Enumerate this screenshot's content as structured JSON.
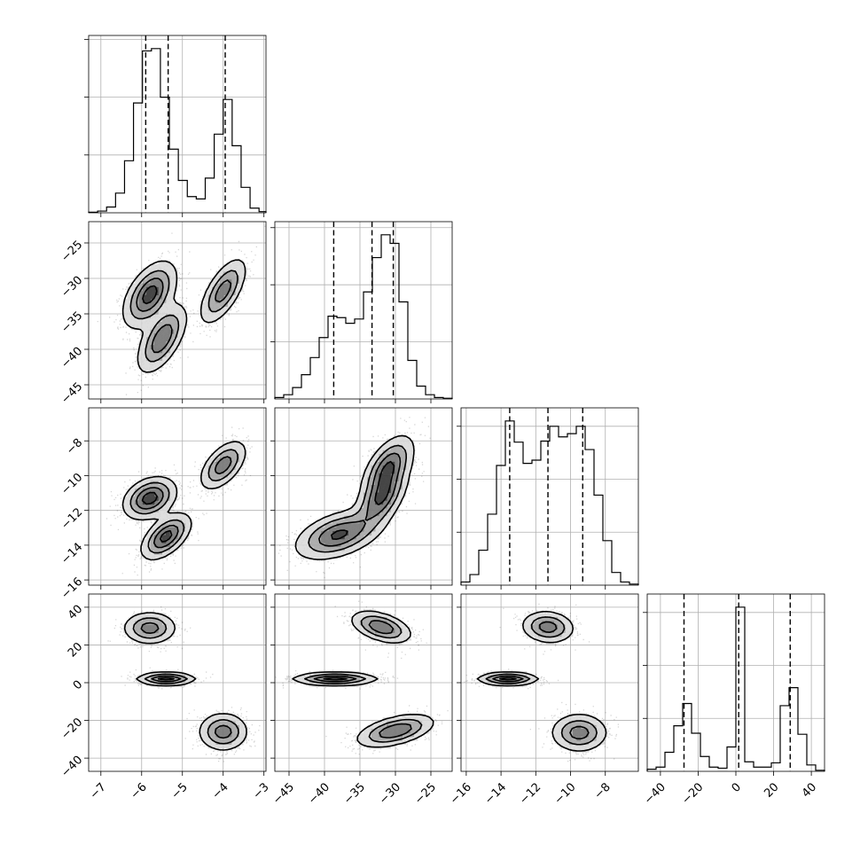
{
  "chart_data": {
    "type": "corner",
    "parameters": [
      {
        "range": [
          -7.3,
          -2.95
        ],
        "ticks": [
          -7,
          -6,
          -5,
          -4,
          -3
        ],
        "tick_labels": [
          "−7",
          "−6",
          "−5",
          "−4",
          "−3"
        ],
        "quantiles": [
          -5.9,
          -5.35,
          -3.95
        ],
        "histogram": {
          "edges": [
            -7.3,
            -7.08,
            -6.86,
            -6.64,
            -6.42,
            -6.2,
            -5.98,
            -5.76,
            -5.54,
            -5.32,
            -5.1,
            -4.88,
            -4.66,
            -4.44,
            -4.22,
            -4.0,
            -3.78,
            -3.56,
            -3.34,
            -3.12,
            -2.95
          ],
          "counts": [
            0.5,
            1.5,
            5,
            17,
            45,
            95,
            140,
            142,
            100,
            55,
            28,
            14,
            12,
            30,
            68,
            98,
            58,
            22,
            4,
            1
          ]
        }
      },
      {
        "range": [
          -47,
          -22
        ],
        "ticks": [
          -45,
          -40,
          -35,
          -30,
          -25
        ],
        "tick_labels": [
          "−45",
          "−40",
          "−35",
          "−30",
          "−25"
        ],
        "quantiles": [
          -38.7,
          -33.3,
          -30.3
        ],
        "histogram": {
          "edges": [
            -47,
            -45.75,
            -44.5,
            -43.25,
            -42.0,
            -40.75,
            -39.5,
            -38.25,
            -37.0,
            -35.75,
            -34.5,
            -33.25,
            -32.0,
            -30.75,
            -29.5,
            -28.25,
            -27.0,
            -25.75,
            -24.5,
            -23.25,
            -22
          ],
          "counts": [
            1,
            3,
            8,
            17,
            29,
            43,
            58,
            57,
            53,
            56,
            75,
            99,
            115,
            109,
            68,
            27,
            9,
            3,
            1,
            0.5
          ]
        }
      },
      {
        "range": [
          -16.3,
          -6.1
        ],
        "ticks": [
          -16,
          -14,
          -12,
          -10,
          -8
        ],
        "tick_labels": [
          "−16",
          "−14",
          "−12",
          "−10",
          "−8"
        ],
        "quantiles": [
          -13.5,
          -11.3,
          -9.3
        ],
        "histogram": {
          "edges": [
            -16.3,
            -15.79,
            -15.28,
            -14.77,
            -14.26,
            -13.75,
            -13.24,
            -12.73,
            -12.22,
            -11.71,
            -11.2,
            -10.69,
            -10.18,
            -9.67,
            -9.16,
            -8.65,
            -8.14,
            -7.63,
            -7.12,
            -6.61,
            -6.1
          ],
          "counts": [
            3,
            10,
            33,
            67,
            113,
            155,
            135,
            115,
            118,
            136,
            150,
            140,
            143,
            150,
            128,
            85,
            42,
            12,
            3,
            1
          ]
        }
      },
      {
        "range": [
          -47,
          47
        ],
        "ticks": [
          -40,
          -20,
          0,
          20,
          40
        ],
        "tick_labels": [
          "−40",
          "−20",
          "0",
          "20",
          "40"
        ],
        "quantiles": [
          -27.5,
          1.5,
          28.8
        ],
        "histogram": {
          "edges": [
            -47,
            -42.3,
            -37.6,
            -32.9,
            -28.2,
            -23.5,
            -18.8,
            -14.1,
            -9.4,
            -4.7,
            0.0,
            4.7,
            9.4,
            14.1,
            18.8,
            23.5,
            28.2,
            32.9,
            37.6,
            42.3,
            47
          ],
          "counts": [
            2,
            4,
            18,
            43,
            64,
            36,
            14,
            4,
            3,
            23,
            155,
            9,
            4,
            4,
            8,
            62,
            79,
            35,
            6,
            1
          ]
        }
      }
    ],
    "joint_panels": [
      {
        "x": 0,
        "y": 1,
        "modes": [
          {
            "mean": [
              -5.8,
              -32.3
            ],
            "sd": [
              0.32,
              2.3
            ],
            "rho": 0.5,
            "weight": 0.45
          },
          {
            "mean": [
              -5.5,
              -38.5
            ],
            "sd": [
              0.3,
              2.4
            ],
            "rho": 0.6,
            "weight": 0.35
          },
          {
            "mean": [
              -4.0,
              -31.8
            ],
            "sd": [
              0.28,
              2.3
            ],
            "rho": 0.65,
            "weight": 0.3
          }
        ]
      },
      {
        "x": 0,
        "y": 2,
        "modes": [
          {
            "mean": [
              -5.8,
              -11.3
            ],
            "sd": [
              0.32,
              0.6
            ],
            "rho": 0.3,
            "weight": 0.45
          },
          {
            "mean": [
              -5.4,
              -13.5
            ],
            "sd": [
              0.3,
              0.65
            ],
            "rho": 0.55,
            "weight": 0.38
          },
          {
            "mean": [
              -4.0,
              -9.4
            ],
            "sd": [
              0.28,
              0.7
            ],
            "rho": 0.55,
            "weight": 0.3
          }
        ]
      },
      {
        "x": 1,
        "y": 2,
        "modes": [
          {
            "mean": [
              -38.0,
              -13.4
            ],
            "sd": [
              3.0,
              0.7
            ],
            "rho": 0.45,
            "weight": 0.4
          },
          {
            "mean": [
              -32.0,
              -11.3
            ],
            "sd": [
              1.8,
              0.9
            ],
            "rho": 0.55,
            "weight": 0.35
          },
          {
            "mean": [
              -31.0,
              -9.5
            ],
            "sd": [
              1.8,
              0.9
            ],
            "rho": 0.55,
            "weight": 0.35
          }
        ]
      },
      {
        "x": 0,
        "y": 3,
        "modes": [
          {
            "mean": [
              -5.8,
              29.0
            ],
            "sd": [
              0.32,
              4.2
            ],
            "rho": 0.0,
            "weight": 0.3
          },
          {
            "mean": [
              -5.4,
              2.0
            ],
            "sd": [
              0.35,
              1.6
            ],
            "rho": 0.0,
            "weight": 0.4
          },
          {
            "mean": [
              -4.0,
              -26.0
            ],
            "sd": [
              0.3,
              5.0
            ],
            "rho": 0.0,
            "weight": 0.3
          }
        ]
      },
      {
        "x": 1,
        "y": 3,
        "modes": [
          {
            "mean": [
              -32.0,
              29.5
            ],
            "sd": [
              2.1,
              4.2
            ],
            "rho": -0.45,
            "weight": 0.3
          },
          {
            "mean": [
              -38.5,
              2.0
            ],
            "sd": [
              2.9,
              1.6
            ],
            "rho": 0.0,
            "weight": 0.4
          },
          {
            "mean": [
              -30.0,
              -25.5
            ],
            "sd": [
              2.7,
              4.3
            ],
            "rho": 0.5,
            "weight": 0.3
          }
        ]
      },
      {
        "x": 2,
        "y": 3,
        "modes": [
          {
            "mean": [
              -11.3,
              29.5
            ],
            "sd": [
              0.75,
              4.2
            ],
            "rho": -0.1,
            "weight": 0.3
          },
          {
            "mean": [
              -13.6,
              2.0
            ],
            "sd": [
              0.85,
              1.6
            ],
            "rho": 0.0,
            "weight": 0.4
          },
          {
            "mean": [
              -9.5,
              -26.5
            ],
            "sd": [
              0.8,
              5.0
            ],
            "rho": 0.0,
            "weight": 0.3
          }
        ]
      }
    ],
    "contour_levels": [
      0.12,
      0.34,
      0.6,
      0.86
    ],
    "grid": true
  }
}
